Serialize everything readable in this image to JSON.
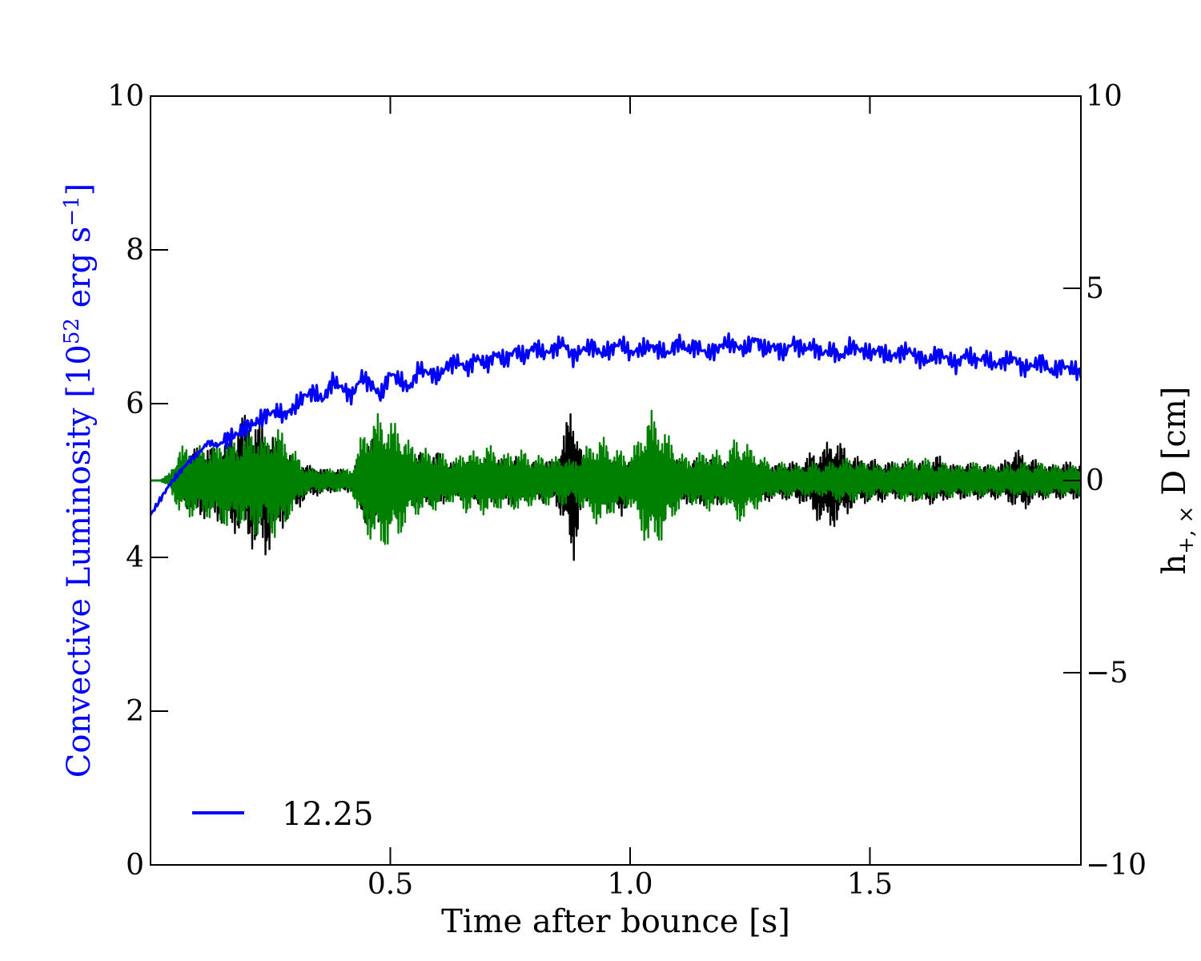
{
  "chart_data": {
    "type": "line",
    "title": "",
    "xlabel": "Time after bounce [s]",
    "ylabel_left": {
      "prefix": "Convective Luminosity [10",
      "exp": "52",
      "middle": " erg s",
      "exp2": "−1",
      "suffix": "]",
      "color": "#0000ff"
    },
    "ylabel_right": {
      "base": "h",
      "sub": "+, ×",
      "suffix": " D [cm]",
      "color": "#000000"
    },
    "xlim": [
      0.0,
      1.94
    ],
    "ylim_left": [
      0,
      10
    ],
    "ylim_right": [
      -10,
      10
    ],
    "x_ticks": [
      {
        "value": 0.5,
        "label": "0.5"
      },
      {
        "value": 1.0,
        "label": "1.0"
      },
      {
        "value": 1.5,
        "label": "1.5"
      }
    ],
    "y_ticks_left": [
      {
        "value": 0,
        "label": "0"
      },
      {
        "value": 2,
        "label": "2"
      },
      {
        "value": 4,
        "label": "4"
      },
      {
        "value": 6,
        "label": "6"
      },
      {
        "value": 8,
        "label": "8"
      },
      {
        "value": 10,
        "label": "10"
      }
    ],
    "y_ticks_right": [
      {
        "value": -10,
        "label": "−10"
      },
      {
        "value": -5,
        "label": "−5"
      },
      {
        "value": 0,
        "label": "0"
      },
      {
        "value": 5,
        "label": "5"
      },
      {
        "value": 10,
        "label": "10"
      }
    ],
    "legend": {
      "position": "lower-left",
      "entries": [
        {
          "label": "12.25",
          "color": "#0000ff"
        }
      ]
    },
    "series": [
      {
        "name": "12.25",
        "axis": "left",
        "color": "#0000ff",
        "x": [
          0.0,
          0.02,
          0.04,
          0.06,
          0.08,
          0.1,
          0.12,
          0.14,
          0.16,
          0.18,
          0.2,
          0.22,
          0.24,
          0.26,
          0.28,
          0.3,
          0.32,
          0.34,
          0.36,
          0.38,
          0.4,
          0.42,
          0.44,
          0.46,
          0.48,
          0.5,
          0.52,
          0.54,
          0.56,
          0.58,
          0.6,
          0.62,
          0.64,
          0.66,
          0.68,
          0.7,
          0.72,
          0.74,
          0.76,
          0.78,
          0.8,
          0.82,
          0.84,
          0.86,
          0.88,
          0.9,
          0.92,
          0.94,
          0.96,
          0.98,
          1.0,
          1.02,
          1.04,
          1.06,
          1.08,
          1.1,
          1.12,
          1.14,
          1.16,
          1.18,
          1.2,
          1.22,
          1.24,
          1.26,
          1.28,
          1.3,
          1.32,
          1.34,
          1.36,
          1.38,
          1.4,
          1.42,
          1.44,
          1.46,
          1.48,
          1.5,
          1.52,
          1.54,
          1.56,
          1.58,
          1.6,
          1.62,
          1.64,
          1.66,
          1.68,
          1.7,
          1.72,
          1.74,
          1.76,
          1.78,
          1.8,
          1.82,
          1.84,
          1.86,
          1.88,
          1.9,
          1.92,
          1.94
        ],
        "y": [
          4.55,
          4.75,
          4.95,
          5.1,
          5.25,
          5.35,
          5.5,
          5.45,
          5.55,
          5.6,
          5.7,
          5.75,
          5.85,
          5.9,
          5.85,
          5.95,
          6.1,
          6.15,
          6.05,
          6.3,
          6.2,
          6.1,
          6.35,
          6.25,
          6.1,
          6.4,
          6.3,
          6.2,
          6.45,
          6.4,
          6.35,
          6.5,
          6.55,
          6.45,
          6.6,
          6.5,
          6.65,
          6.55,
          6.7,
          6.6,
          6.75,
          6.65,
          6.7,
          6.8,
          6.6,
          6.7,
          6.75,
          6.65,
          6.7,
          6.8,
          6.65,
          6.7,
          6.75,
          6.7,
          6.65,
          6.8,
          6.7,
          6.75,
          6.65,
          6.7,
          6.8,
          6.75,
          6.7,
          6.85,
          6.7,
          6.75,
          6.65,
          6.8,
          6.7,
          6.75,
          6.65,
          6.7,
          6.6,
          6.75,
          6.7,
          6.65,
          6.7,
          6.6,
          6.65,
          6.7,
          6.6,
          6.55,
          6.65,
          6.6,
          6.5,
          6.65,
          6.55,
          6.6,
          6.5,
          6.55,
          6.6,
          6.45,
          6.5,
          6.55,
          6.4,
          6.5,
          6.45,
          6.4
        ]
      },
      {
        "name": "",
        "axis": "right",
        "color": "#000000",
        "x": [
          0.0,
          0.02,
          0.04,
          0.06,
          0.08,
          0.1,
          0.12,
          0.14,
          0.16,
          0.18,
          0.2,
          0.22,
          0.24,
          0.26,
          0.28,
          0.3,
          0.32,
          0.34,
          0.36,
          0.38,
          0.4,
          0.42,
          0.44,
          0.46,
          0.48,
          0.5,
          0.52,
          0.54,
          0.56,
          0.58,
          0.6,
          0.62,
          0.64,
          0.66,
          0.68,
          0.7,
          0.72,
          0.74,
          0.76,
          0.78,
          0.8,
          0.82,
          0.84,
          0.86,
          0.88,
          0.9,
          0.92,
          0.94,
          0.96,
          0.98,
          1.0,
          1.02,
          1.04,
          1.06,
          1.08,
          1.1,
          1.12,
          1.14,
          1.16,
          1.18,
          1.2,
          1.22,
          1.24,
          1.26,
          1.28,
          1.3,
          1.32,
          1.34,
          1.36,
          1.38,
          1.4,
          1.42,
          1.44,
          1.46,
          1.48,
          1.5,
          1.52,
          1.54,
          1.56,
          1.58,
          1.6,
          1.62,
          1.64,
          1.66,
          1.68,
          1.7,
          1.72,
          1.74,
          1.76,
          1.78,
          1.8,
          1.82,
          1.84,
          1.86,
          1.88,
          1.9,
          1.92,
          1.94
        ],
        "upper": [
          0.0,
          0.0,
          0.1,
          0.4,
          0.8,
          0.9,
          0.9,
          0.9,
          1.0,
          1.6,
          1.8,
          1.6,
          1.4,
          1.2,
          0.8,
          0.6,
          0.4,
          0.4,
          0.3,
          0.3,
          0.3,
          0.2,
          0.8,
          1.2,
          0.9,
          0.7,
          0.7,
          0.6,
          0.8,
          0.6,
          0.8,
          0.5,
          0.5,
          0.5,
          0.5,
          0.6,
          0.6,
          0.6,
          0.7,
          0.5,
          0.5,
          0.6,
          0.5,
          1.2,
          2.2,
          0.7,
          0.5,
          0.5,
          0.5,
          0.6,
          0.5,
          0.7,
          0.7,
          0.4,
          0.6,
          0.6,
          0.5,
          0.6,
          0.6,
          0.6,
          0.5,
          0.6,
          0.4,
          0.4,
          0.5,
          0.4,
          0.5,
          0.5,
          0.5,
          0.8,
          0.8,
          1.2,
          1.0,
          0.7,
          0.6,
          0.6,
          0.5,
          0.5,
          0.5,
          0.5,
          0.5,
          0.5,
          0.7,
          0.5,
          0.4,
          0.5,
          0.4,
          0.4,
          0.4,
          0.5,
          0.9,
          0.7,
          0.6,
          0.4,
          0.4,
          0.5,
          0.5,
          0.5
        ],
        "lower": [
          0.0,
          0.0,
          -0.1,
          -0.4,
          -0.8,
          -1.0,
          -1.0,
          -1.1,
          -1.3,
          -1.4,
          -1.6,
          -1.9,
          -2.1,
          -1.5,
          -1.2,
          -0.8,
          -0.6,
          -0.4,
          -0.4,
          -0.3,
          -0.3,
          -0.3,
          -0.9,
          -1.4,
          -1.1,
          -0.8,
          -0.8,
          -0.6,
          -0.7,
          -0.6,
          -0.8,
          -0.5,
          -0.5,
          -0.5,
          -0.6,
          -0.6,
          -0.6,
          -0.6,
          -0.7,
          -0.5,
          -0.5,
          -0.6,
          -0.5,
          -1.1,
          -2.3,
          -0.8,
          -0.5,
          -0.6,
          -0.8,
          -1.0,
          -0.6,
          -0.7,
          -0.8,
          -0.5,
          -0.7,
          -0.7,
          -0.6,
          -0.8,
          -0.6,
          -0.7,
          -0.6,
          -0.7,
          -0.5,
          -0.5,
          -0.6,
          -0.5,
          -0.5,
          -0.6,
          -0.6,
          -0.9,
          -1.2,
          -1.3,
          -1.1,
          -0.8,
          -0.6,
          -0.6,
          -0.6,
          -0.5,
          -0.5,
          -0.5,
          -0.6,
          -0.6,
          -0.7,
          -0.5,
          -0.5,
          -0.5,
          -0.5,
          -0.5,
          -0.5,
          -0.5,
          -0.7,
          -0.8,
          -0.6,
          -0.5,
          -0.5,
          -0.5,
          -0.5,
          -0.5
        ]
      },
      {
        "name": "",
        "axis": "right",
        "color": "#008000",
        "x": [
          0.0,
          0.02,
          0.04,
          0.06,
          0.08,
          0.1,
          0.12,
          0.14,
          0.16,
          0.18,
          0.2,
          0.22,
          0.24,
          0.26,
          0.28,
          0.3,
          0.32,
          0.34,
          0.36,
          0.38,
          0.4,
          0.42,
          0.44,
          0.46,
          0.48,
          0.5,
          0.52,
          0.54,
          0.56,
          0.58,
          0.6,
          0.62,
          0.64,
          0.66,
          0.68,
          0.7,
          0.72,
          0.74,
          0.76,
          0.78,
          0.8,
          0.82,
          0.84,
          0.86,
          0.88,
          0.9,
          0.92,
          0.94,
          0.96,
          0.98,
          1.0,
          1.02,
          1.04,
          1.06,
          1.08,
          1.1,
          1.12,
          1.14,
          1.16,
          1.18,
          1.2,
          1.22,
          1.24,
          1.26,
          1.28,
          1.3,
          1.32,
          1.34,
          1.36,
          1.38,
          1.4,
          1.42,
          1.44,
          1.46,
          1.48,
          1.5,
          1.52,
          1.54,
          1.56,
          1.58,
          1.6,
          1.62,
          1.64,
          1.66,
          1.68,
          1.7,
          1.72,
          1.74,
          1.76,
          1.78,
          1.8,
          1.82,
          1.84,
          1.86,
          1.88,
          1.9,
          1.92,
          1.94
        ],
        "upper": [
          0.0,
          0.0,
          0.2,
          0.9,
          0.9,
          0.9,
          0.9,
          1.0,
          1.2,
          1.0,
          1.3,
          1.4,
          1.1,
          1.5,
          1.2,
          0.8,
          0.4,
          0.3,
          0.3,
          0.3,
          0.3,
          0.3,
          1.2,
          1.6,
          1.8,
          1.6,
          1.5,
          1.0,
          0.9,
          0.8,
          0.8,
          0.6,
          0.6,
          0.9,
          0.7,
          1.0,
          0.8,
          0.7,
          0.8,
          0.8,
          0.6,
          0.7,
          0.6,
          0.7,
          0.5,
          0.8,
          1.0,
          1.2,
          0.9,
          0.8,
          0.7,
          1.2,
          1.9,
          1.6,
          1.2,
          0.8,
          0.6,
          0.7,
          0.8,
          0.8,
          0.6,
          1.2,
          1.0,
          0.8,
          0.6,
          0.4,
          0.5,
          0.4,
          0.4,
          0.5,
          0.4,
          0.5,
          0.6,
          0.6,
          0.5,
          0.5,
          0.4,
          0.4,
          0.5,
          0.6,
          0.5,
          0.6,
          0.4,
          0.5,
          0.4,
          0.4,
          0.5,
          0.4,
          0.4,
          0.4,
          0.4,
          0.5,
          0.4,
          0.5,
          0.4,
          0.4,
          0.4,
          0.4
        ],
        "lower": [
          0.0,
          0.0,
          -0.2,
          -0.9,
          -1.0,
          -0.9,
          -1.0,
          -1.1,
          -1.3,
          -1.1,
          -1.3,
          -1.5,
          -1.2,
          -1.6,
          -1.2,
          -0.8,
          -0.4,
          -0.3,
          -0.3,
          -0.3,
          -0.3,
          -0.3,
          -1.3,
          -1.6,
          -1.9,
          -1.7,
          -1.5,
          -1.0,
          -0.9,
          -0.8,
          -0.8,
          -0.6,
          -0.6,
          -0.9,
          -0.7,
          -1.0,
          -0.8,
          -0.7,
          -0.8,
          -0.8,
          -0.6,
          -0.7,
          -0.6,
          -0.7,
          -0.5,
          -0.8,
          -1.0,
          -1.3,
          -0.9,
          -0.8,
          -0.7,
          -1.3,
          -1.9,
          -1.7,
          -1.3,
          -0.8,
          -0.6,
          -0.7,
          -0.8,
          -0.8,
          -0.6,
          -1.2,
          -1.0,
          -0.8,
          -0.6,
          -0.4,
          -0.5,
          -0.4,
          -0.4,
          -0.5,
          -0.4,
          -0.5,
          -0.6,
          -0.6,
          -0.5,
          -0.5,
          -0.4,
          -0.4,
          -0.5,
          -0.6,
          -0.5,
          -0.6,
          -0.4,
          -0.5,
          -0.4,
          -0.4,
          -0.5,
          -0.4,
          -0.4,
          -0.4,
          -0.4,
          -0.5,
          -0.4,
          -0.5,
          -0.4,
          -0.4,
          -0.4,
          -0.4
        ]
      }
    ]
  }
}
